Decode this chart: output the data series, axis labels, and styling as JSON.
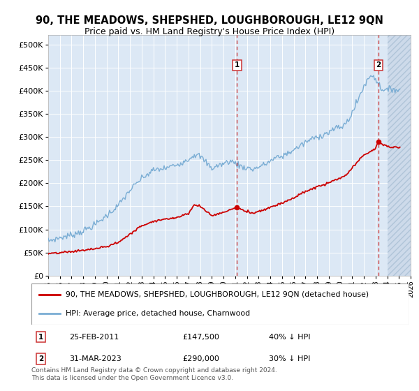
{
  "title": "90, THE MEADOWS, SHEPSHED, LOUGHBOROUGH, LE12 9QN",
  "subtitle": "Price paid vs. HM Land Registry's House Price Index (HPI)",
  "footer": "Contains HM Land Registry data © Crown copyright and database right 2024.\nThis data is licensed under the Open Government Licence v3.0.",
  "legend_line1": "90, THE MEADOWS, SHEPSHED, LOUGHBOROUGH, LE12 9QN (detached house)",
  "legend_line2": "HPI: Average price, detached house, Charnwood",
  "annotation1": {
    "label": "1",
    "date_str": "25-FEB-2011",
    "price_str": "£147,500",
    "hpi_str": "40% ↓ HPI",
    "x_year": 2011.15,
    "price": 147500
  },
  "annotation2": {
    "label": "2",
    "date_str": "31-MAR-2023",
    "price_str": "£290,000",
    "hpi_str": "30% ↓ HPI",
    "x_year": 2023.25,
    "price": 290000
  },
  "red_line_color": "#cc0000",
  "blue_line_color": "#7aadd4",
  "background_color": "#ffffff",
  "plot_bg_color": "#dce8f5",
  "grid_color": "#ffffff",
  "ylim": [
    0,
    520000
  ],
  "yticks": [
    0,
    50000,
    100000,
    150000,
    200000,
    250000,
    300000,
    350000,
    400000,
    450000,
    500000
  ],
  "xlim_start": 1995,
  "xlim_end": 2026,
  "hatch_start": 2024.0
}
